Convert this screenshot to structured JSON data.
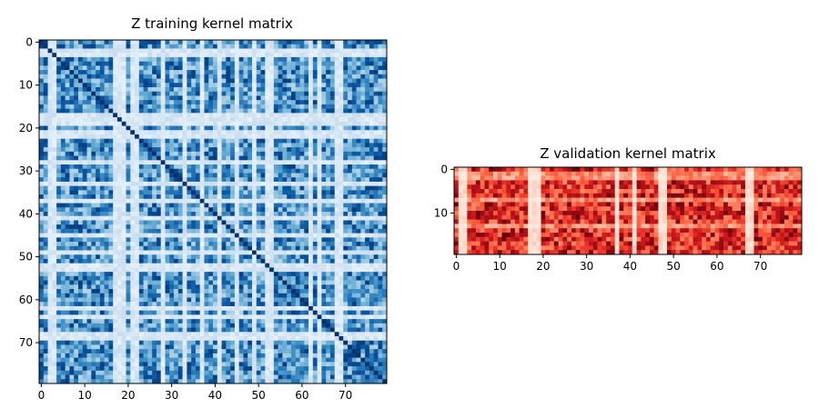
{
  "chart_data": [
    {
      "type": "heatmap",
      "title": "Z training kernel matrix",
      "rows": 80,
      "cols": 80,
      "colormap": "Blues",
      "x_ticks": [
        0,
        10,
        20,
        30,
        40,
        50,
        60,
        70
      ],
      "y_ticks": [
        0,
        10,
        20,
        30,
        40,
        50,
        60,
        70
      ],
      "light_bands": [
        2,
        3,
        17,
        18,
        19,
        21,
        22,
        28,
        33,
        37,
        41,
        45,
        49,
        52,
        53,
        62,
        64,
        68,
        69
      ],
      "diagonal": true,
      "colors": {
        "low": "#f7fbff",
        "high": "#08306b"
      }
    },
    {
      "type": "heatmap",
      "title": "Z validation kernel matrix",
      "rows": 20,
      "cols": 80,
      "colormap": "Reds",
      "x_ticks": [
        0,
        10,
        20,
        30,
        40,
        50,
        60,
        70
      ],
      "y_ticks": [
        0,
        10
      ],
      "light_cols": [
        1,
        2,
        17,
        18,
        19,
        37,
        41,
        47,
        48,
        67,
        68
      ],
      "light_rows": [
        1,
        2,
        7,
        13
      ],
      "colors": {
        "low": "#fff5f0",
        "high": "#67000d"
      }
    }
  ]
}
